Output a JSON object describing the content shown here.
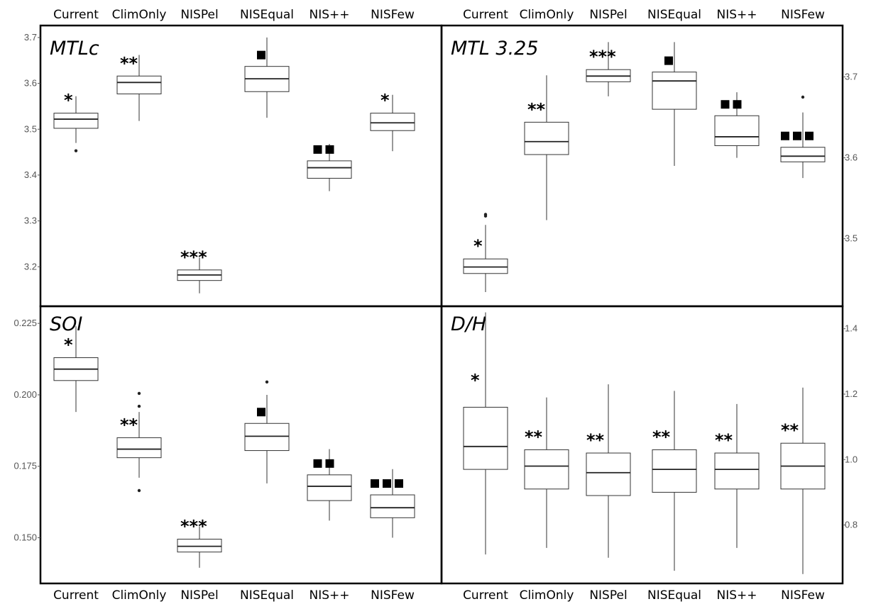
{
  "chart_data": [
    {
      "type": "box",
      "title": "MTLc",
      "categories": [
        "Current",
        "ClimOnly",
        "NISPel",
        "NISEqual",
        "NIS++",
        "NISFew"
      ],
      "y_ticks": [
        "3.2",
        "3.3",
        "3.4",
        "3.5",
        "3.6",
        "3.7"
      ],
      "ylim": [
        3.12,
        3.72
      ],
      "y_axis_side": "left",
      "boxes": [
        {
          "min": 3.47,
          "q1": 3.502,
          "median": 3.522,
          "q3": 3.535,
          "max": 3.572,
          "outliers": [
            3.453
          ]
        },
        {
          "min": 3.518,
          "q1": 3.577,
          "median": 3.602,
          "q3": 3.616,
          "max": 3.662,
          "outliers": []
        },
        {
          "min": 3.142,
          "q1": 3.17,
          "median": 3.182,
          "q3": 3.193,
          "max": 3.22,
          "outliers": []
        },
        {
          "min": 3.525,
          "q1": 3.582,
          "median": 3.61,
          "q3": 3.637,
          "max": 3.7,
          "outliers": []
        },
        {
          "min": 3.365,
          "q1": 3.393,
          "median": 3.416,
          "q3": 3.431,
          "max": 3.468,
          "outliers": []
        },
        {
          "min": 3.452,
          "q1": 3.497,
          "median": 3.514,
          "q3": 3.535,
          "max": 3.575,
          "outliers": []
        }
      ],
      "annotations": [
        {
          "type": "asterisk",
          "text": "*"
        },
        {
          "type": "asterisk",
          "text": "**"
        },
        {
          "type": "asterisk",
          "text": "***"
        },
        {
          "type": "square",
          "count": 1
        },
        {
          "type": "square",
          "count": 2
        },
        {
          "type": "asterisk",
          "text": "*"
        }
      ]
    },
    {
      "type": "box",
      "title": "MTL 3.25",
      "categories": [
        "Current",
        "ClimOnly",
        "NISPel",
        "NISEqual",
        "NIS++",
        "NISFew"
      ],
      "y_ticks": [
        "3.5",
        "3.6",
        "3.7"
      ],
      "ylim": [
        3.42,
        3.76
      ],
      "y_axis_side": "right",
      "boxes": [
        {
          "min": 3.434,
          "q1": 3.457,
          "median": 3.465,
          "q3": 3.475,
          "max": 3.517,
          "outliers": [
            3.528,
            3.53
          ]
        },
        {
          "min": 3.523,
          "q1": 3.604,
          "median": 3.62,
          "q3": 3.644,
          "max": 3.702,
          "outliers": []
        },
        {
          "min": 3.676,
          "q1": 3.694,
          "median": 3.701,
          "q3": 3.709,
          "max": 3.743,
          "outliers": []
        },
        {
          "min": 3.59,
          "q1": 3.66,
          "median": 3.695,
          "q3": 3.706,
          "max": 3.743,
          "outliers": []
        },
        {
          "min": 3.6,
          "q1": 3.615,
          "median": 3.626,
          "q3": 3.652,
          "max": 3.681,
          "outliers": []
        },
        {
          "min": 3.575,
          "q1": 3.595,
          "median": 3.602,
          "q3": 3.613,
          "max": 3.656,
          "outliers": [
            3.675
          ]
        }
      ],
      "annotations": [
        {
          "type": "asterisk",
          "text": "*"
        },
        {
          "type": "asterisk",
          "text": "**"
        },
        {
          "type": "asterisk",
          "text": "***"
        },
        {
          "type": "square",
          "count": 1
        },
        {
          "type": "square",
          "count": 2
        },
        {
          "type": "square",
          "count": 3
        }
      ]
    },
    {
      "type": "box",
      "title": "SOI",
      "categories": [
        "Current",
        "ClimOnly",
        "NISPel",
        "NISEqual",
        "NIS++",
        "NISFew"
      ],
      "y_ticks": [
        "0.150",
        "0.175",
        "0.200",
        "0.225"
      ],
      "ylim": [
        0.135,
        0.23
      ],
      "y_axis_side": "left",
      "boxes": [
        {
          "min": 0.194,
          "q1": 0.205,
          "median": 0.209,
          "q3": 0.213,
          "max": 0.224,
          "outliers": []
        },
        {
          "min": 0.171,
          "q1": 0.178,
          "median": 0.181,
          "q3": 0.185,
          "max": 0.194,
          "outliers": [
            0.1665,
            0.196,
            0.2005
          ]
        },
        {
          "min": 0.1395,
          "q1": 0.145,
          "median": 0.147,
          "q3": 0.1495,
          "max": 0.154,
          "outliers": []
        },
        {
          "min": 0.169,
          "q1": 0.1805,
          "median": 0.1855,
          "q3": 0.19,
          "max": 0.2,
          "outliers": [
            0.2045
          ]
        },
        {
          "min": 0.156,
          "q1": 0.163,
          "median": 0.168,
          "q3": 0.172,
          "max": 0.181,
          "outliers": []
        },
        {
          "min": 0.15,
          "q1": 0.157,
          "median": 0.1605,
          "q3": 0.165,
          "max": 0.174,
          "outliers": []
        }
      ],
      "annotations": [
        {
          "type": "asterisk",
          "text": "*"
        },
        {
          "type": "asterisk",
          "text": "**"
        },
        {
          "type": "asterisk",
          "text": "***"
        },
        {
          "type": "square",
          "count": 1
        },
        {
          "type": "square",
          "count": 2
        },
        {
          "type": "square",
          "count": 3
        }
      ]
    },
    {
      "type": "box",
      "title": "D/H",
      "categories": [
        "Current",
        "ClimOnly",
        "NISPel",
        "NISEqual",
        "NIS++",
        "NISFew"
      ],
      "y_ticks": [
        "0.8",
        "1.0",
        "1.2",
        "1.4"
      ],
      "ylim": [
        0.63,
        1.46
      ],
      "y_axis_side": "right",
      "boxes": [
        {
          "min": 0.71,
          "q1": 0.97,
          "median": 1.04,
          "q3": 1.16,
          "max": 1.45,
          "outliers": []
        },
        {
          "min": 0.73,
          "q1": 0.91,
          "median": 0.98,
          "q3": 1.03,
          "max": 1.19,
          "outliers": []
        },
        {
          "min": 0.7,
          "q1": 0.89,
          "median": 0.96,
          "q3": 1.02,
          "max": 1.23,
          "outliers": []
        },
        {
          "min": 0.66,
          "q1": 0.9,
          "median": 0.97,
          "q3": 1.03,
          "max": 1.21,
          "outliers": []
        },
        {
          "min": 0.73,
          "q1": 0.91,
          "median": 0.97,
          "q3": 1.02,
          "max": 1.17,
          "outliers": []
        },
        {
          "min": 0.65,
          "q1": 0.91,
          "median": 0.98,
          "q3": 1.05,
          "max": 1.22,
          "outliers": []
        }
      ],
      "annotations": [
        {
          "type": "asterisk",
          "text": "*"
        },
        {
          "type": "asterisk",
          "text": "**"
        },
        {
          "type": "asterisk",
          "text": "**"
        },
        {
          "type": "asterisk",
          "text": "**"
        },
        {
          "type": "asterisk",
          "text": "**"
        },
        {
          "type": "asterisk",
          "text": "**"
        }
      ]
    }
  ]
}
